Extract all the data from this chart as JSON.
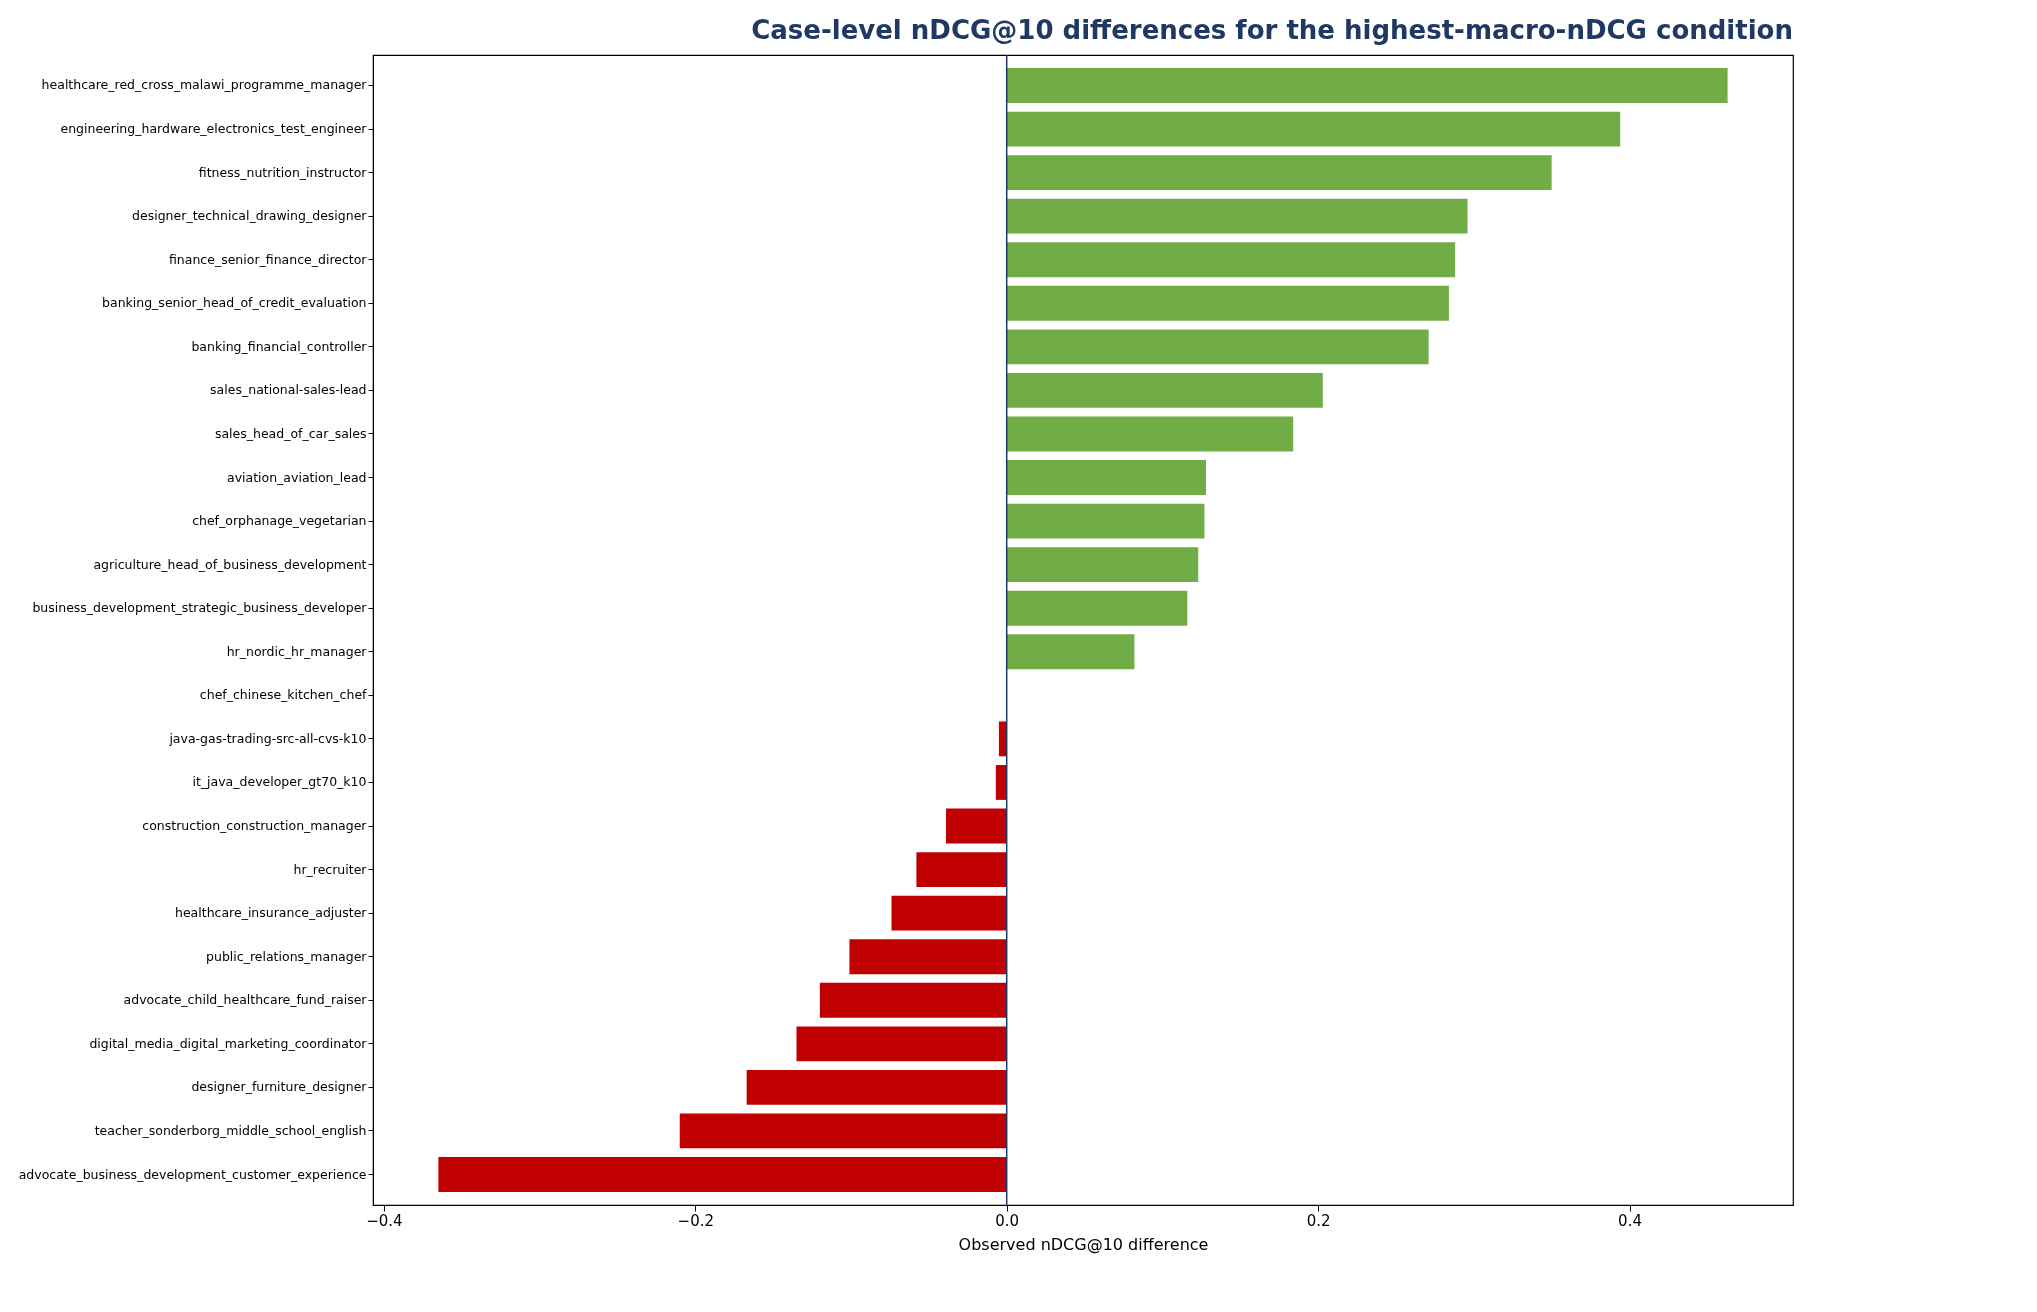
{
  "chart_data": {
    "type": "bar",
    "orientation": "horizontal",
    "title": "Case-level nDCG@10 differences for the highest-macro-nDCG condition",
    "xlabel": "Observed nDCG@10 difference",
    "categories": [
      "healthcare_red_cross_malawi_programme_manager",
      "engineering_hardware_electronics_test_engineer",
      "fitness_nutrition_instructor",
      "designer_technical_drawing_designer",
      "finance_senior_finance_director",
      "banking_senior_head_of_credit_evaluation",
      "banking_financial_controller",
      "sales_national-sales-lead",
      "sales_head_of_car_sales",
      "aviation_aviation_lead",
      "chef_orphanage_vegetarian",
      "agriculture_head_of_business_development",
      "business_development_strategic_business_developer",
      "hr_nordic_hr_manager",
      "chef_chinese_kitchen_chef",
      "java-gas-trading-src-all-cvs-k10",
      "it_java_developer_gt70_k10",
      "construction_construction_manager",
      "hr_recruiter",
      "healthcare_insurance_adjuster",
      "public_relations_manager",
      "advocate_child_healthcare_fund_raiser",
      "digital_media_digital_marketing_coordinator",
      "designer_furniture_designer",
      "teacher_sonderborg_middle_school_english",
      "advocate_business_development_customer_experience"
    ],
    "values": [
      0.463,
      0.394,
      0.35,
      0.296,
      0.288,
      0.284,
      0.271,
      0.203,
      0.184,
      0.128,
      0.127,
      0.123,
      0.116,
      0.082,
      0,
      -0.005,
      -0.007,
      -0.039,
      -0.058,
      -0.074,
      -0.101,
      -0.12,
      -0.135,
      -0.167,
      -0.21,
      -0.365
    ],
    "colors": [
      "#70ad47",
      "#70ad47",
      "#70ad47",
      "#70ad47",
      "#70ad47",
      "#70ad47",
      "#70ad47",
      "#70ad47",
      "#70ad47",
      "#70ad47",
      "#70ad47",
      "#70ad47",
      "#70ad47",
      "#70ad47",
      "#70ad47",
      "#c00000",
      "#c00000",
      "#c00000",
      "#c00000",
      "#c00000",
      "#c00000",
      "#c00000",
      "#c00000",
      "#c00000",
      "#c00000",
      "#c00000"
    ],
    "xlim": [
      -0.407,
      0.505
    ],
    "xticks": [
      {
        "value": -0.4,
        "label": "−0.4"
      },
      {
        "value": -0.2,
        "label": "−0.2"
      },
      {
        "value": 0,
        "label": "0.0"
      },
      0.2,
      0.4
    ],
    "ref_lines": [
      {
        "axis": "x",
        "value": 0,
        "color": "#1f3864"
      }
    ],
    "grid": false
  }
}
